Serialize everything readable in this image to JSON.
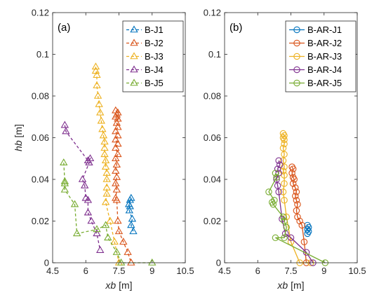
{
  "chart_data": [
    {
      "type": "line",
      "panel_label": "(a)",
      "xlabel_main": "xb",
      "xlabel_unit": " [m]",
      "ylabel_main": "hb",
      "ylabel_unit": " [m]",
      "xlim": [
        4.5,
        10.5
      ],
      "ylim": [
        0,
        0.12
      ],
      "xticks": [
        "4.5",
        "6",
        "7.5",
        "9",
        "10.5"
      ],
      "xtick_values": [
        4.5,
        6,
        7.5,
        9,
        10.5
      ],
      "yticks": [
        "0",
        "0.02",
        "0.04",
        "0.06",
        "0.08",
        "0.1",
        "0.12"
      ],
      "ytick_values": [
        0,
        0.02,
        0.04,
        0.06,
        0.08,
        0.1,
        0.12
      ],
      "line_style": "dashed",
      "marker": "triangle",
      "legend_position": "top-right",
      "series": [
        {
          "name": "B-J1",
          "color": "#0072BD",
          "points": [
            [
              8.0,
              0.03
            ],
            [
              8.05,
              0.031
            ],
            [
              7.95,
              0.028
            ],
            [
              8.0,
              0.027
            ],
            [
              7.97,
              0.025
            ],
            [
              8.1,
              0.021
            ],
            [
              8.05,
              0.018
            ],
            [
              8.15,
              0.015
            ]
          ]
        },
        {
          "name": "B-J2",
          "color": "#D95319",
          "points": [
            [
              7.35,
              0.073
            ],
            [
              7.45,
              0.072
            ],
            [
              7.4,
              0.071
            ],
            [
              7.35,
              0.07
            ],
            [
              7.45,
              0.069
            ],
            [
              7.4,
              0.067
            ],
            [
              7.45,
              0.065
            ],
            [
              7.35,
              0.063
            ],
            [
              7.45,
              0.061
            ],
            [
              7.35,
              0.059
            ],
            [
              7.45,
              0.057
            ],
            [
              7.35,
              0.055
            ],
            [
              7.45,
              0.052
            ],
            [
              7.35,
              0.05
            ],
            [
              7.4,
              0.047
            ],
            [
              7.35,
              0.044
            ],
            [
              7.4,
              0.041
            ],
            [
              7.35,
              0.038
            ],
            [
              7.4,
              0.035
            ],
            [
              7.35,
              0.031
            ],
            [
              7.4,
              0.03
            ],
            [
              7.45,
              0.02
            ],
            [
              7.5,
              0.015
            ],
            [
              7.7,
              0.01
            ],
            [
              7.9,
              0.005
            ],
            [
              8.05,
              0.0
            ]
          ]
        },
        {
          "name": "B-J3",
          "color": "#EDB120",
          "points": [
            [
              6.45,
              0.094
            ],
            [
              6.45,
              0.092
            ],
            [
              6.5,
              0.09
            ],
            [
              6.5,
              0.085
            ],
            [
              6.55,
              0.08
            ],
            [
              6.6,
              0.076
            ],
            [
              6.65,
              0.072
            ],
            [
              6.7,
              0.068
            ],
            [
              6.75,
              0.064
            ],
            [
              6.8,
              0.061
            ],
            [
              6.85,
              0.058
            ],
            [
              6.85,
              0.055
            ],
            [
              6.85,
              0.052
            ],
            [
              6.9,
              0.049
            ],
            [
              6.9,
              0.046
            ],
            [
              6.95,
              0.043
            ],
            [
              6.95,
              0.04
            ],
            [
              6.95,
              0.036
            ],
            [
              6.95,
              0.033
            ],
            [
              6.9,
              0.029
            ],
            [
              7.1,
              0.02
            ],
            [
              7.3,
              0.01
            ],
            [
              7.5,
              0.0
            ]
          ]
        },
        {
          "name": "B-J4",
          "color": "#7E2F8E",
          "points": [
            [
              5.05,
              0.066
            ],
            [
              5.1,
              0.063
            ],
            [
              6.1,
              0.049
            ],
            [
              6.2,
              0.05
            ],
            [
              6.15,
              0.048
            ],
            [
              5.85,
              0.04
            ],
            [
              5.95,
              0.037
            ],
            [
              6.0,
              0.031
            ],
            [
              6.1,
              0.03
            ],
            [
              6.1,
              0.024
            ],
            [
              6.25,
              0.02
            ],
            [
              6.5,
              0.014
            ],
            [
              6.65,
              0.006
            ]
          ]
        },
        {
          "name": "B-J5",
          "color": "#77AC30",
          "points": [
            [
              5.0,
              0.048
            ],
            [
              5.05,
              0.039
            ],
            [
              5.05,
              0.038
            ],
            [
              5.05,
              0.035
            ],
            [
              5.5,
              0.028
            ],
            [
              5.6,
              0.014
            ],
            [
              6.5,
              0.016
            ],
            [
              6.9,
              0.018
            ],
            [
              7.0,
              0.012
            ],
            [
              7.4,
              0.005
            ],
            [
              7.6,
              0.0
            ],
            [
              9.0,
              0.0
            ]
          ]
        }
      ]
    },
    {
      "type": "line",
      "panel_label": "(b)",
      "xlabel_main": "xb",
      "xlabel_unit": " [m]",
      "xlim": [
        4.5,
        10.5
      ],
      "ylim": [
        0,
        0.12
      ],
      "xticks": [
        "4.5",
        "6",
        "7.5",
        "9",
        "10.5"
      ],
      "xtick_values": [
        4.5,
        6,
        7.5,
        9,
        10.5
      ],
      "yticks": [
        "0",
        "0.02",
        "0.04",
        "0.06",
        "0.08",
        "0.1",
        "0.12"
      ],
      "ytick_values": [
        0,
        0.02,
        0.04,
        0.06,
        0.08,
        0.1,
        0.12
      ],
      "line_style": "solid",
      "marker": "circle",
      "legend_position": "top-right",
      "series": [
        {
          "name": "B-AR-J1",
          "color": "#0072BD",
          "points": [
            [
              8.25,
              0.018
            ],
            [
              8.3,
              0.017
            ],
            [
              8.25,
              0.016
            ],
            [
              8.3,
              0.015
            ],
            [
              8.25,
              0.014
            ]
          ]
        },
        {
          "name": "B-AR-J2",
          "color": "#D95319",
          "points": [
            [
              7.55,
              0.046
            ],
            [
              7.6,
              0.045
            ],
            [
              7.55,
              0.043
            ],
            [
              7.6,
              0.041
            ],
            [
              7.65,
              0.04
            ],
            [
              7.6,
              0.038
            ],
            [
              7.7,
              0.036
            ],
            [
              7.75,
              0.034
            ],
            [
              7.7,
              0.032
            ],
            [
              7.75,
              0.03
            ],
            [
              7.8,
              0.028
            ],
            [
              7.75,
              0.025
            ],
            [
              7.8,
              0.022
            ],
            [
              7.9,
              0.02
            ],
            [
              8.0,
              0.018
            ],
            [
              8.1,
              0.01
            ],
            [
              8.2,
              0.0
            ]
          ]
        },
        {
          "name": "B-AR-J3",
          "color": "#EDB120",
          "points": [
            [
              7.15,
              0.062
            ],
            [
              7.2,
              0.061
            ],
            [
              7.15,
              0.06
            ],
            [
              7.2,
              0.059
            ],
            [
              7.2,
              0.057
            ],
            [
              7.15,
              0.055
            ],
            [
              7.2,
              0.052
            ],
            [
              7.15,
              0.049
            ],
            [
              7.2,
              0.046
            ],
            [
              7.15,
              0.044
            ],
            [
              7.2,
              0.042
            ],
            [
              7.2,
              0.038
            ],
            [
              7.15,
              0.034
            ],
            [
              7.2,
              0.03
            ],
            [
              7.3,
              0.022
            ],
            [
              7.5,
              0.01
            ],
            [
              7.9,
              0.0
            ],
            [
              8.4,
              0.0
            ]
          ]
        },
        {
          "name": "B-AR-J4",
          "color": "#7E2F8E",
          "points": [
            [
              6.95,
              0.049
            ],
            [
              7.0,
              0.047
            ],
            [
              6.9,
              0.045
            ],
            [
              6.95,
              0.043
            ],
            [
              6.85,
              0.04
            ],
            [
              6.9,
              0.037
            ],
            [
              6.95,
              0.034
            ],
            [
              7.1,
              0.021
            ],
            [
              7.25,
              0.014
            ],
            [
              7.5,
              0.012
            ],
            [
              8.2,
              0.005
            ],
            [
              8.5,
              0.0
            ]
          ]
        },
        {
          "name": "B-AR-J5",
          "color": "#77AC30",
          "points": [
            [
              6.8,
              0.043
            ],
            [
              6.85,
              0.041
            ],
            [
              6.5,
              0.034
            ],
            [
              6.75,
              0.03
            ],
            [
              6.65,
              0.029
            ],
            [
              6.7,
              0.028
            ],
            [
              7.15,
              0.022
            ],
            [
              7.2,
              0.02
            ],
            [
              7.3,
              0.017
            ],
            [
              7.2,
              0.012
            ],
            [
              6.8,
              0.012
            ],
            [
              9.05,
              0.0
            ]
          ]
        }
      ]
    }
  ]
}
